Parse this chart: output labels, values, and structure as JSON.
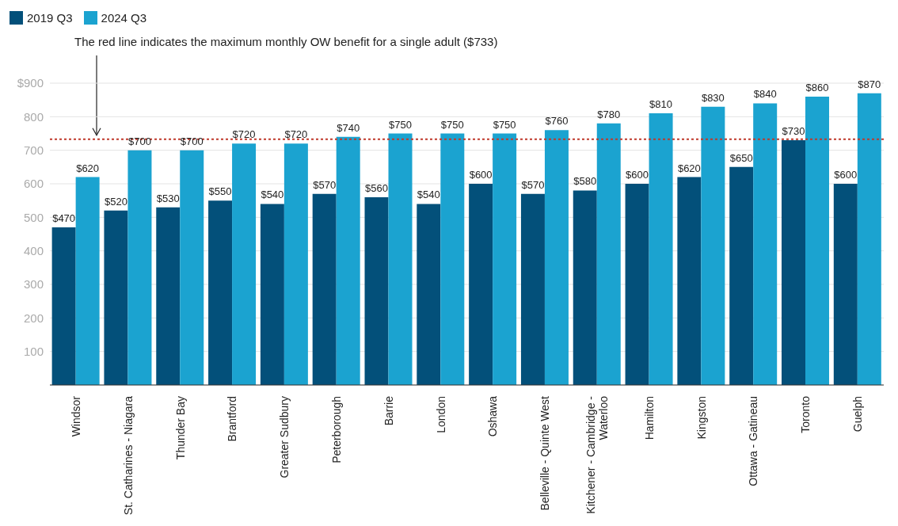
{
  "chart_data": {
    "type": "bar",
    "annotations": [
      "The red line indicates the maximum monthly OW benefit for a single adult ($733)"
    ],
    "categories": [
      "Windsor",
      "St. Catharines - Niagara",
      "Thunder Bay",
      "Brantford",
      "Greater Sudbury",
      "Peterborough",
      "Barrie",
      "London",
      "Oshawa",
      "Belleville - Quinte West",
      "Kitchener - Cambridge - Waterloo",
      "Hamilton",
      "Kingston",
      "Ottawa - Gatineau",
      "Toronto",
      "Guelph"
    ],
    "series": [
      {
        "name": "2019 Q3",
        "color": "#03507a",
        "values": [
          470,
          520,
          530,
          550,
          540,
          570,
          560,
          540,
          600,
          570,
          580,
          600,
          620,
          650,
          730,
          600
        ],
        "value_labels": [
          "$470",
          "$520",
          "$530",
          "$550",
          "$540",
          "$570",
          "$560",
          "$540",
          "$600",
          "$570",
          "$580",
          "$600",
          "$620",
          "$650",
          "$730",
          "$600"
        ]
      },
      {
        "name": "2024 Q3",
        "color": "#1ba3d0",
        "values": [
          620,
          700,
          700,
          720,
          720,
          740,
          750,
          750,
          750,
          760,
          780,
          810,
          830,
          840,
          860,
          870
        ],
        "value_labels": [
          "$620",
          "$700",
          "$700",
          "$720",
          "$720",
          "$740",
          "$750",
          "$750",
          "$750",
          "$760",
          "$780",
          "$810",
          "$830",
          "$840",
          "$860",
          "$870"
        ]
      }
    ],
    "ylim": [
      0,
      900
    ],
    "yticks": [
      {
        "value": 100,
        "label": "100"
      },
      {
        "value": 200,
        "label": "200"
      },
      {
        "value": 300,
        "label": "300"
      },
      {
        "value": 400,
        "label": "400"
      },
      {
        "value": 500,
        "label": "500"
      },
      {
        "value": 600,
        "label": "600"
      },
      {
        "value": 700,
        "label": "700"
      },
      {
        "value": 800,
        "label": "800"
      },
      {
        "value": 900,
        "label": "$900"
      }
    ],
    "grid": "y",
    "legend": "top left",
    "ref_lines": [
      {
        "axis": "y",
        "value": 733,
        "color": "#c0392b",
        "line_style": "dotted"
      }
    ]
  }
}
